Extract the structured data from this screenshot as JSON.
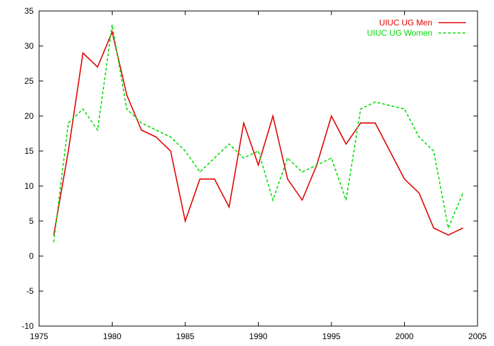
{
  "chart_data": {
    "type": "line",
    "title": "",
    "xlabel": "",
    "ylabel": "",
    "xlim": [
      1975,
      2005
    ],
    "ylim": [
      -10,
      35
    ],
    "xticks": [
      1975,
      1980,
      1985,
      1990,
      1995,
      2000,
      2005
    ],
    "yticks": [
      -10,
      -5,
      0,
      5,
      10,
      15,
      20,
      25,
      30,
      35
    ],
    "grid": false,
    "legend_position": "top-right",
    "series": [
      {
        "name": "UIUC UG Men",
        "color": "#e00000",
        "style": "solid",
        "x": [
          1976,
          1977,
          1978,
          1979,
          1980,
          1981,
          1982,
          1983,
          1984,
          1985,
          1986,
          1987,
          1988,
          1989,
          1990,
          1991,
          1992,
          1993,
          1994,
          1995,
          1996,
          1997,
          1998,
          1999,
          2000,
          2001,
          2002,
          2003,
          2004
        ],
        "y": [
          3,
          15,
          29,
          27,
          32,
          23,
          18,
          17,
          15,
          5,
          11,
          11,
          7,
          19,
          13,
          20,
          11,
          8,
          13,
          20,
          16,
          19,
          19,
          15,
          11,
          9,
          4,
          3,
          4
        ]
      },
      {
        "name": "UIUC UG Women",
        "color": "#00dd00",
        "style": "dashed",
        "x": [
          1976,
          1977,
          1978,
          1979,
          1980,
          1981,
          1982,
          1983,
          1984,
          1985,
          1986,
          1987,
          1988,
          1989,
          1990,
          1991,
          1992,
          1993,
          1994,
          1995,
          1996,
          1997,
          1998,
          1999,
          2000,
          2001,
          2002,
          2003,
          2004
        ],
        "y": [
          2,
          19,
          21,
          18,
          33,
          21,
          19,
          18,
          17,
          15,
          12,
          14,
          16,
          14,
          15,
          8,
          14,
          12,
          13,
          14,
          8,
          21,
          22,
          21.5,
          21,
          17,
          15,
          4,
          9
        ]
      }
    ]
  }
}
